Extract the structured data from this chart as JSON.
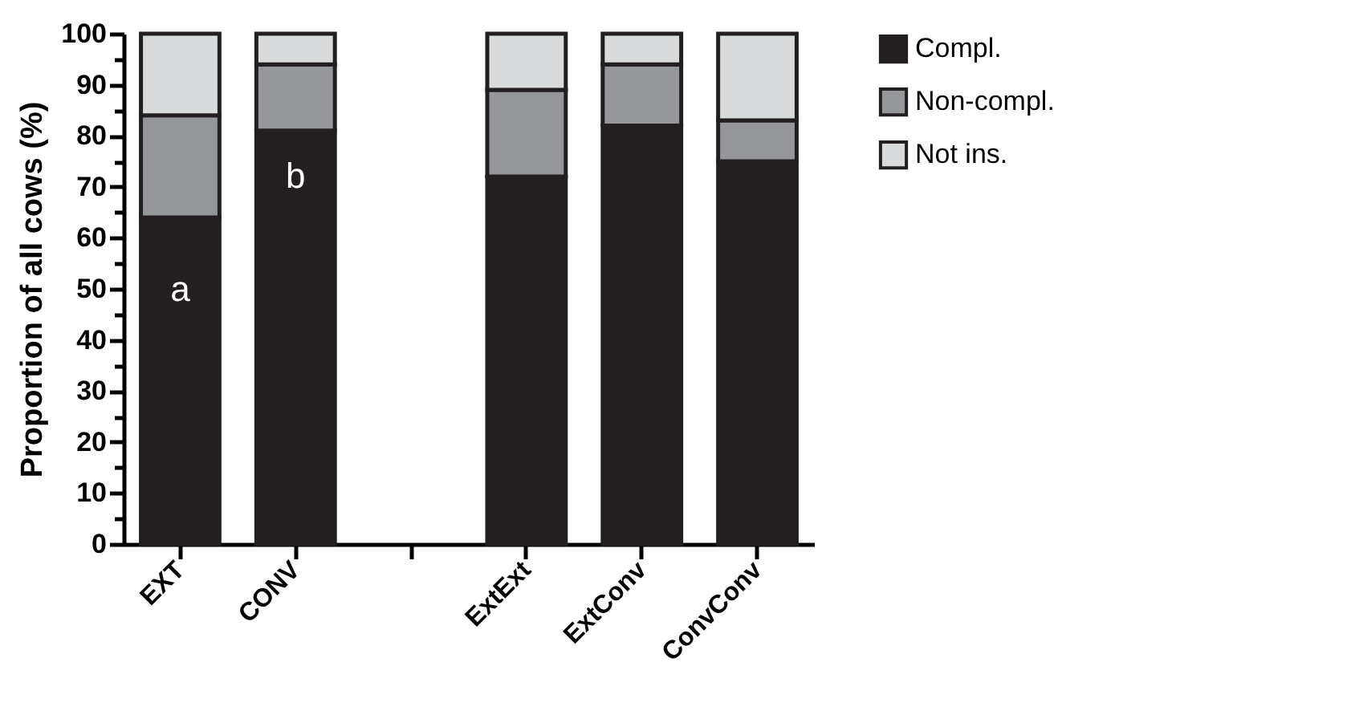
{
  "chart_data": {
    "type": "bar",
    "stacked": true,
    "ylabel": "Proportion of all cows (%)",
    "categories": [
      "EXT",
      "CONV",
      null,
      "ExtExt",
      "ExtConv",
      "ConvConv"
    ],
    "series": [
      {
        "name": "Compl.",
        "color": "#231f20",
        "values": [
          64,
          81,
          null,
          72,
          82,
          75
        ]
      },
      {
        "name": "Non-compl.",
        "color": "#96979b",
        "values": [
          20,
          13,
          null,
          17,
          12,
          8
        ]
      },
      {
        "name": "Not ins.",
        "color": "#d9dadc",
        "values": [
          16,
          6,
          null,
          11,
          6,
          17
        ]
      }
    ],
    "ylim": [
      0,
      100
    ],
    "yticks": [
      0,
      {
        "value": 5,
        "label": null
      },
      10,
      {
        "value": 15,
        "label": null
      },
      20,
      {
        "value": 25,
        "label": null
      },
      30,
      {
        "value": 35,
        "label": null
      },
      40,
      {
        "value": 45,
        "label": null
      },
      50,
      {
        "value": 55,
        "label": null
      },
      60,
      {
        "value": 65,
        "label": null
      },
      70,
      {
        "value": 75,
        "label": null
      },
      80,
      {
        "value": 85,
        "label": null
      },
      90,
      {
        "value": 95,
        "label": null
      },
      100
    ],
    "annotations": [
      "a",
      "b"
    ],
    "grid": false,
    "legend": "top right"
  }
}
